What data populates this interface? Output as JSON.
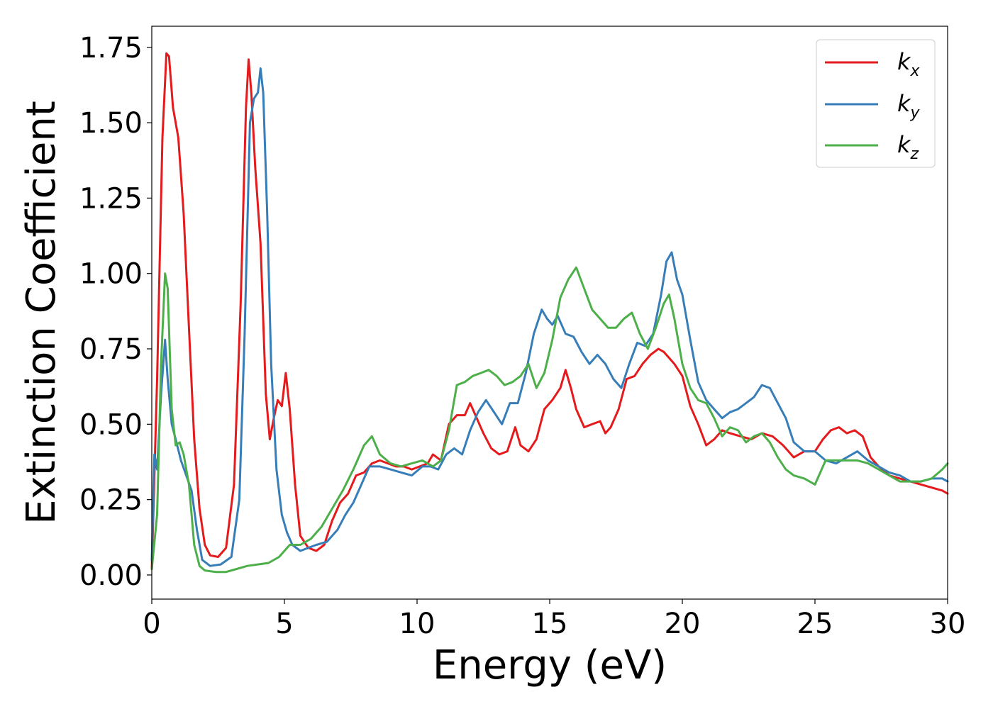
{
  "chart_data": {
    "type": "line",
    "title": "",
    "xlabel": "Energy (eV)",
    "ylabel": "Extinction Coefficient",
    "xlim": [
      0,
      30
    ],
    "ylim": [
      -0.08,
      1.82
    ],
    "xticks": [
      0,
      5,
      10,
      15,
      20,
      25,
      30
    ],
    "xtick_labels": [
      "0",
      "5",
      "10",
      "15",
      "20",
      "25",
      "30"
    ],
    "yticks": [
      0.0,
      0.25,
      0.5,
      0.75,
      1.0,
      1.25,
      1.5,
      1.75
    ],
    "ytick_labels": [
      "0.00",
      "0.25",
      "0.50",
      "0.75",
      "1.00",
      "1.25",
      "1.50",
      "1.75"
    ],
    "grid": false,
    "legend_position": "top-right",
    "series": [
      {
        "name": "k_x",
        "label_base": "k",
        "label_sub": "x",
        "color": "#e41a1c",
        "x": [
          0.0,
          0.2,
          0.4,
          0.55,
          0.65,
          0.8,
          1.0,
          1.2,
          1.4,
          1.6,
          1.8,
          2.0,
          2.2,
          2.5,
          2.8,
          3.1,
          3.35,
          3.55,
          3.65,
          3.75,
          3.9,
          4.1,
          4.3,
          4.45,
          4.6,
          4.75,
          4.9,
          5.05,
          5.2,
          5.4,
          5.6,
          5.9,
          6.2,
          6.5,
          6.8,
          7.1,
          7.4,
          7.7,
          8.0,
          8.3,
          8.6,
          8.9,
          9.2,
          9.5,
          9.8,
          10.1,
          10.4,
          10.6,
          10.9,
          11.2,
          11.5,
          11.8,
          12.0,
          12.2,
          12.5,
          12.8,
          13.1,
          13.4,
          13.7,
          13.9,
          14.2,
          14.5,
          14.8,
          15.1,
          15.4,
          15.6,
          15.8,
          16.0,
          16.3,
          16.6,
          16.9,
          17.1,
          17.3,
          17.6,
          17.9,
          18.2,
          18.5,
          18.8,
          19.1,
          19.3,
          19.5,
          19.7,
          20.0,
          20.3,
          20.6,
          20.9,
          21.2,
          21.5,
          21.8,
          22.2,
          22.6,
          23.0,
          23.4,
          23.8,
          24.2,
          24.6,
          25.0,
          25.3,
          25.6,
          25.9,
          26.2,
          26.5,
          26.8,
          27.1,
          27.4,
          27.8,
          28.2,
          28.6,
          29.0,
          29.4,
          29.8,
          30.0
        ],
        "y": [
          0.02,
          0.65,
          1.45,
          1.73,
          1.72,
          1.55,
          1.45,
          1.2,
          0.82,
          0.45,
          0.22,
          0.1,
          0.065,
          0.06,
          0.09,
          0.3,
          0.9,
          1.55,
          1.71,
          1.6,
          1.35,
          1.1,
          0.6,
          0.45,
          0.52,
          0.58,
          0.56,
          0.67,
          0.55,
          0.3,
          0.13,
          0.09,
          0.08,
          0.1,
          0.18,
          0.24,
          0.27,
          0.33,
          0.34,
          0.37,
          0.38,
          0.37,
          0.36,
          0.36,
          0.35,
          0.36,
          0.37,
          0.4,
          0.38,
          0.5,
          0.53,
          0.53,
          0.57,
          0.53,
          0.47,
          0.42,
          0.4,
          0.41,
          0.49,
          0.43,
          0.41,
          0.45,
          0.55,
          0.58,
          0.62,
          0.68,
          0.62,
          0.55,
          0.49,
          0.5,
          0.51,
          0.47,
          0.49,
          0.55,
          0.65,
          0.66,
          0.7,
          0.73,
          0.75,
          0.74,
          0.72,
          0.7,
          0.66,
          0.56,
          0.5,
          0.43,
          0.45,
          0.48,
          0.47,
          0.46,
          0.45,
          0.47,
          0.46,
          0.43,
          0.39,
          0.41,
          0.41,
          0.45,
          0.48,
          0.49,
          0.47,
          0.48,
          0.46,
          0.39,
          0.36,
          0.33,
          0.32,
          0.31,
          0.3,
          0.29,
          0.28,
          0.27
        ]
      },
      {
        "name": "k_y",
        "label_base": "k",
        "label_sub": "y",
        "color": "#377eb8",
        "x": [
          0.0,
          0.1,
          0.2,
          0.35,
          0.5,
          0.6,
          0.75,
          0.9,
          1.1,
          1.3,
          1.5,
          1.7,
          1.9,
          2.2,
          2.6,
          3.0,
          3.3,
          3.5,
          3.7,
          3.85,
          4.0,
          4.1,
          4.2,
          4.35,
          4.5,
          4.7,
          4.9,
          5.1,
          5.3,
          5.6,
          5.9,
          6.2,
          6.6,
          7.0,
          7.3,
          7.6,
          7.9,
          8.2,
          8.6,
          9.0,
          9.4,
          9.8,
          10.2,
          10.5,
          10.8,
          11.1,
          11.4,
          11.7,
          12.0,
          12.3,
          12.6,
          12.9,
          13.2,
          13.5,
          13.8,
          14.1,
          14.4,
          14.7,
          14.9,
          15.1,
          15.3,
          15.6,
          15.9,
          16.2,
          16.5,
          16.8,
          17.1,
          17.4,
          17.7,
          18.0,
          18.3,
          18.6,
          18.9,
          19.2,
          19.4,
          19.6,
          19.8,
          20.0,
          20.3,
          20.6,
          20.9,
          21.2,
          21.5,
          21.8,
          22.1,
          22.4,
          22.7,
          23.0,
          23.3,
          23.6,
          23.9,
          24.2,
          24.6,
          25.0,
          25.4,
          25.8,
          26.2,
          26.6,
          27.0,
          27.4,
          27.8,
          28.2,
          28.6,
          29.0,
          29.4,
          29.8,
          30.0
        ],
        "y": [
          0.05,
          0.4,
          0.35,
          0.6,
          0.78,
          0.65,
          0.5,
          0.45,
          0.38,
          0.33,
          0.28,
          0.15,
          0.05,
          0.03,
          0.035,
          0.06,
          0.25,
          0.8,
          1.5,
          1.58,
          1.6,
          1.68,
          1.6,
          1.2,
          0.7,
          0.35,
          0.2,
          0.14,
          0.1,
          0.08,
          0.09,
          0.1,
          0.11,
          0.15,
          0.2,
          0.24,
          0.3,
          0.36,
          0.36,
          0.35,
          0.34,
          0.33,
          0.36,
          0.36,
          0.35,
          0.4,
          0.42,
          0.4,
          0.48,
          0.54,
          0.58,
          0.54,
          0.5,
          0.57,
          0.57,
          0.67,
          0.8,
          0.88,
          0.85,
          0.83,
          0.86,
          0.8,
          0.79,
          0.74,
          0.7,
          0.73,
          0.7,
          0.65,
          0.62,
          0.7,
          0.77,
          0.76,
          0.8,
          0.93,
          1.04,
          1.07,
          0.98,
          0.93,
          0.78,
          0.64,
          0.58,
          0.55,
          0.52,
          0.54,
          0.55,
          0.57,
          0.59,
          0.63,
          0.62,
          0.57,
          0.52,
          0.44,
          0.41,
          0.41,
          0.38,
          0.37,
          0.39,
          0.41,
          0.38,
          0.36,
          0.34,
          0.33,
          0.31,
          0.31,
          0.32,
          0.32,
          0.31
        ]
      },
      {
        "name": "k_z",
        "label_base": "k",
        "label_sub": "z",
        "color": "#4daf4a",
        "x": [
          0.0,
          0.2,
          0.35,
          0.5,
          0.6,
          0.75,
          0.9,
          1.05,
          1.2,
          1.4,
          1.6,
          1.8,
          2.0,
          2.4,
          2.8,
          3.2,
          3.6,
          4.0,
          4.4,
          4.8,
          5.2,
          5.6,
          6.0,
          6.4,
          6.8,
          7.2,
          7.6,
          8.0,
          8.3,
          8.6,
          9.0,
          9.4,
          9.8,
          10.2,
          10.6,
          10.9,
          11.2,
          11.5,
          11.8,
          12.1,
          12.4,
          12.7,
          13.0,
          13.3,
          13.6,
          13.9,
          14.2,
          14.5,
          14.8,
          15.1,
          15.4,
          15.7,
          16.0,
          16.3,
          16.6,
          16.9,
          17.2,
          17.5,
          17.8,
          18.1,
          18.4,
          18.7,
          19.0,
          19.3,
          19.5,
          19.7,
          20.0,
          20.3,
          20.6,
          20.9,
          21.2,
          21.5,
          21.8,
          22.1,
          22.4,
          22.7,
          23.0,
          23.3,
          23.6,
          23.9,
          24.2,
          24.6,
          25.0,
          25.4,
          25.8,
          26.2,
          26.6,
          27.0,
          27.4,
          27.8,
          28.2,
          28.6,
          29.0,
          29.4,
          29.8,
          30.0
        ],
        "y": [
          0.02,
          0.2,
          0.7,
          1.0,
          0.95,
          0.55,
          0.43,
          0.44,
          0.4,
          0.3,
          0.1,
          0.03,
          0.015,
          0.01,
          0.01,
          0.02,
          0.03,
          0.035,
          0.04,
          0.06,
          0.1,
          0.1,
          0.12,
          0.16,
          0.22,
          0.28,
          0.35,
          0.43,
          0.46,
          0.4,
          0.37,
          0.36,
          0.37,
          0.38,
          0.36,
          0.38,
          0.48,
          0.63,
          0.64,
          0.66,
          0.67,
          0.68,
          0.66,
          0.63,
          0.64,
          0.66,
          0.7,
          0.62,
          0.67,
          0.78,
          0.92,
          0.98,
          1.02,
          0.95,
          0.88,
          0.85,
          0.82,
          0.82,
          0.85,
          0.87,
          0.8,
          0.75,
          0.82,
          0.9,
          0.93,
          0.85,
          0.7,
          0.62,
          0.58,
          0.57,
          0.52,
          0.46,
          0.49,
          0.48,
          0.44,
          0.46,
          0.47,
          0.44,
          0.39,
          0.35,
          0.33,
          0.32,
          0.3,
          0.38,
          0.38,
          0.38,
          0.38,
          0.37,
          0.35,
          0.33,
          0.31,
          0.31,
          0.31,
          0.32,
          0.35,
          0.37
        ]
      }
    ]
  }
}
